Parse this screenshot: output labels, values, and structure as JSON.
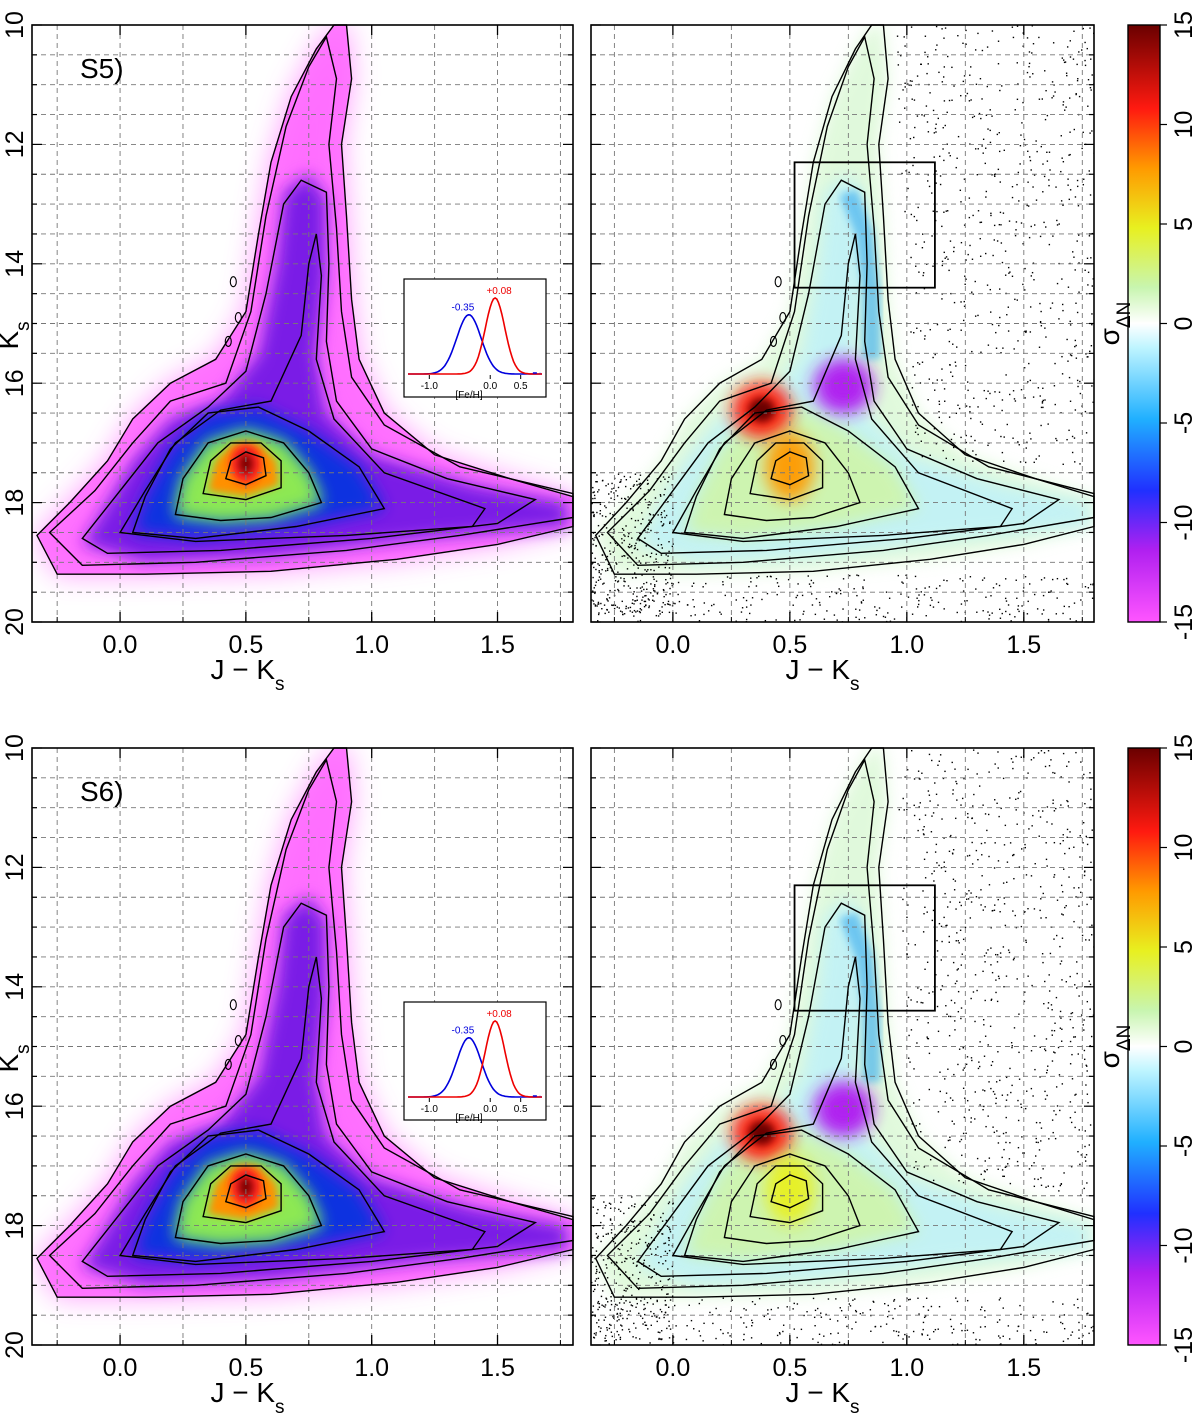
{
  "figure": {
    "panel_tags": [
      "S5)",
      "S6)"
    ]
  },
  "chart_data": [
    {
      "type": "heatmap",
      "panel": "S5) left",
      "tag": "S5)",
      "xlabel": "J − K",
      "xlabel_sub": "s",
      "ylabel": "K",
      "ylabel_sub": "s",
      "xlim": [
        -0.35,
        1.8
      ],
      "ylim": [
        20,
        10
      ],
      "x_ticks": [
        "0.0",
        "0.5",
        "1.0",
        "1.5"
      ],
      "y_ticks": [
        "10",
        "12",
        "14",
        "16",
        "18",
        "20"
      ],
      "grid": true,
      "colormap": [
        "#ff66ff",
        "#7a1fe6",
        "#1030e0",
        "#15a8e8",
        "#30e090",
        "#d8f020",
        "#ff9000",
        "#ff2020",
        "#7a0000"
      ],
      "density_peak": {
        "x": 0.5,
        "y": 17.35
      },
      "inset": {
        "xlabel": "[Fe/H]",
        "x_ticks": [
          "-1.0",
          "0.0",
          "0.5"
        ],
        "xlim": [
          -1.35,
          0.85
        ],
        "series": [
          {
            "name": "-0.35",
            "mean": -0.35,
            "sigma": 0.2,
            "color": "#0000dd"
          },
          {
            "name": "+0.08",
            "mean": 0.08,
            "sigma": 0.16,
            "color": "#ee0000"
          }
        ]
      }
    },
    {
      "type": "heatmap",
      "panel": "S5) right",
      "xlabel": "J − K",
      "xlabel_sub": "s",
      "xlim": [
        -0.35,
        1.8
      ],
      "ylim": [
        20,
        10
      ],
      "x_ticks": [
        "0.0",
        "0.5",
        "1.0",
        "1.5"
      ],
      "grid": true,
      "box": {
        "x": [
          0.52,
          1.12
        ],
        "y": [
          12.3,
          14.4
        ]
      },
      "colorbar": {
        "label": "σ",
        "label_sub": "ΔN",
        "ticks": [
          "-15",
          "-10",
          "-5",
          "0",
          "5",
          "10",
          "15"
        ],
        "range": [
          -15,
          15
        ]
      },
      "features": [
        {
          "label": "excess",
          "x": 0.38,
          "y": 16.45,
          "value": 11
        },
        {
          "label": "deficit",
          "x": 0.73,
          "y": 16.05,
          "value": -13
        },
        {
          "label": "excess",
          "x": 0.5,
          "y": 17.4,
          "value": 6
        }
      ]
    },
    {
      "type": "heatmap",
      "panel": "S6) left",
      "tag": "S6)",
      "xlabel": "J − K",
      "xlabel_sub": "s",
      "ylabel": "K",
      "ylabel_sub": "s",
      "xlim": [
        -0.35,
        1.8
      ],
      "ylim": [
        20,
        10
      ],
      "x_ticks": [
        "0.0",
        "0.5",
        "1.0",
        "1.5"
      ],
      "y_ticks": [
        "10",
        "12",
        "14",
        "16",
        "18",
        "20"
      ],
      "grid": true,
      "density_peak": {
        "x": 0.5,
        "y": 17.35
      },
      "inset": {
        "xlabel": "[Fe/H]",
        "x_ticks": [
          "-1.0",
          "0.0",
          "0.5"
        ],
        "xlim": [
          -1.35,
          0.85
        ],
        "series": [
          {
            "name": "-0.35",
            "mean": -0.35,
            "sigma": 0.2,
            "color": "#0000dd"
          },
          {
            "name": "+0.08",
            "mean": 0.08,
            "sigma": 0.16,
            "color": "#ee0000"
          }
        ]
      }
    },
    {
      "type": "heatmap",
      "panel": "S6) right",
      "xlabel": "J − K",
      "xlabel_sub": "s",
      "xlim": [
        -0.35,
        1.8
      ],
      "ylim": [
        20,
        10
      ],
      "x_ticks": [
        "0.0",
        "0.5",
        "1.0",
        "1.5"
      ],
      "grid": true,
      "box": {
        "x": [
          0.52,
          1.12
        ],
        "y": [
          12.3,
          14.4
        ]
      },
      "colorbar": {
        "label": "σ",
        "label_sub": "ΔN",
        "ticks": [
          "-15",
          "-10",
          "-5",
          "0",
          "5",
          "10",
          "15"
        ],
        "range": [
          -15,
          15
        ]
      },
      "features": [
        {
          "label": "excess",
          "x": 0.38,
          "y": 16.45,
          "value": 11
        },
        {
          "label": "deficit",
          "x": 0.73,
          "y": 16.05,
          "value": -13
        },
        {
          "label": "excess",
          "x": 0.5,
          "y": 17.4,
          "value": 5
        }
      ]
    }
  ]
}
